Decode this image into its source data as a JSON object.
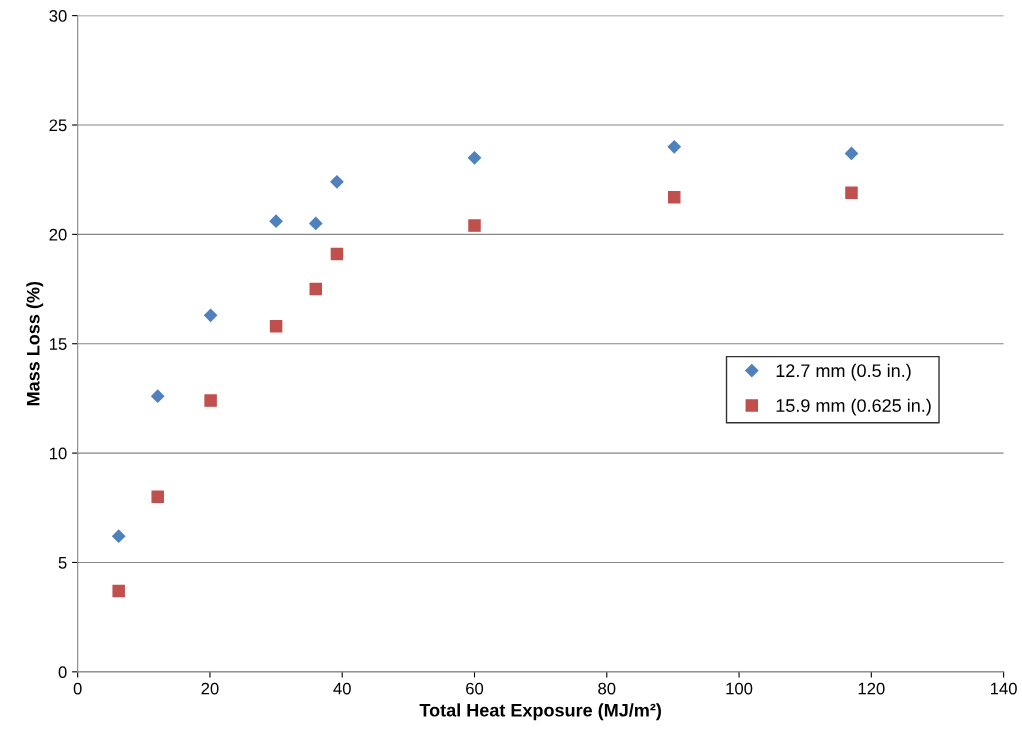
{
  "chart_data": {
    "type": "scatter",
    "xlabel": "Total Heat Exposure (MJ/m²)",
    "ylabel": "Mass Loss (%)",
    "xlim": [
      0,
      140
    ],
    "xticks": [
      0,
      20,
      40,
      60,
      80,
      100,
      120,
      140
    ],
    "ylim": [
      0,
      30
    ],
    "yticks": [
      0,
      5,
      10,
      15,
      20,
      25,
      30
    ],
    "grid": "y",
    "legend": "center right",
    "series": [
      {
        "name": "12.7 mm (0.5 in.)",
        "color": "#4f81bd",
        "marker": "diamond",
        "x": [
          6.2,
          12.1,
          20.1,
          30,
          36,
          39.2,
          60,
          90.2,
          117
        ],
        "values": [
          6.2,
          12.6,
          16.3,
          20.6,
          20.5,
          22.4,
          23.5,
          24.0,
          23.7
        ]
      },
      {
        "name": "15.9 mm (0.625 in.)",
        "color": "#c0504d",
        "marker": "square",
        "x": [
          6.2,
          12.1,
          20.1,
          30,
          36,
          39.2,
          60,
          90.2,
          117
        ],
        "values": [
          3.7,
          8.0,
          12.4,
          15.8,
          17.5,
          19.1,
          20.4,
          21.7,
          21.9
        ]
      }
    ]
  }
}
